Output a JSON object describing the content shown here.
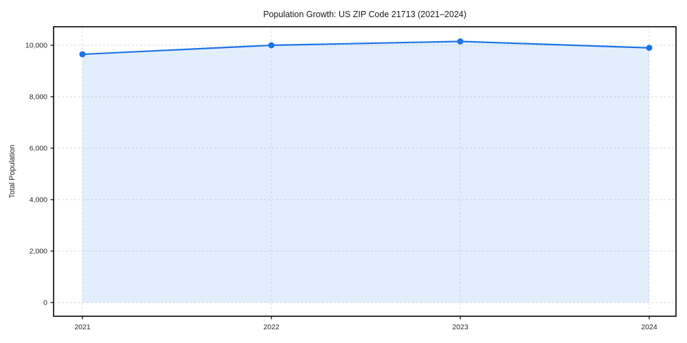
{
  "chart_data": {
    "type": "area",
    "title": "Population Growth: US ZIP Code 21713 (2021–2024)",
    "xlabel": "",
    "ylabel": "Total Population",
    "categories": [
      "2021",
      "2022",
      "2023",
      "2024"
    ],
    "series": [
      {
        "name": "Total Population",
        "values": [
          9650,
          10000,
          10150,
          9900
        ]
      }
    ],
    "yticks": [
      0,
      2000,
      4000,
      6000,
      8000,
      10000
    ],
    "ylim": [
      0,
      10000
    ],
    "grid": true,
    "legend": "none",
    "line_color": "#1a73e8",
    "marker_color": "#1a73e8",
    "fill_color": "#1a73e8",
    "fill_opacity": 0.12,
    "background_color": "#ffffff",
    "frame_color": "#000000",
    "grid_color": "#d4d4d4"
  }
}
